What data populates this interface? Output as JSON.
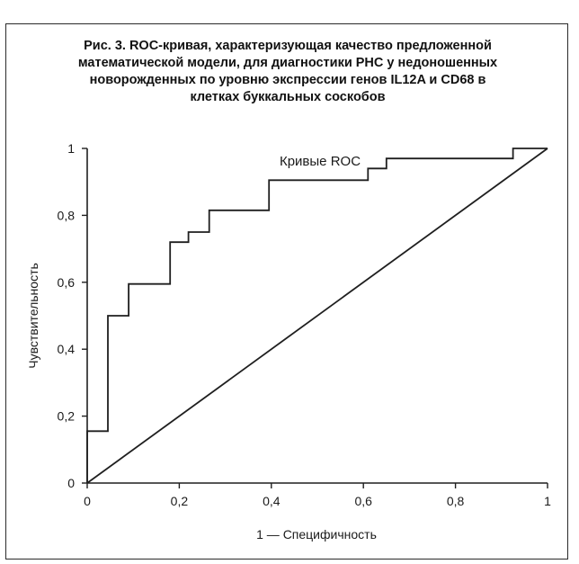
{
  "figure": {
    "caption_lines": [
      "Рис. 3. ROC-кривая, характеризующая качество предложенной",
      "математической модели, для диагностики РНС у недоношенных",
      "новорожденных по уровню экспрессии генов IL12A и CD68 в",
      "клетках буккальных соскобов"
    ]
  },
  "chart_data": {
    "type": "line",
    "title": "Кривые ROC",
    "xlabel": "1 — Специфичность",
    "ylabel": "Чувствительность",
    "xlim": [
      0,
      1
    ],
    "ylim": [
      0,
      1
    ],
    "x_ticks": [
      0,
      0.2,
      0.4,
      0.6,
      0.8,
      1
    ],
    "x_tick_labels": [
      "0",
      "0,2",
      "0,4",
      "0,6",
      "0,8",
      "1"
    ],
    "y_ticks": [
      0,
      0.2,
      0.4,
      0.6,
      0.8,
      1
    ],
    "y_tick_labels": [
      "0",
      "0,2",
      "0,4",
      "0,6",
      "0,8",
      "1"
    ],
    "grid": false,
    "legend": "none",
    "series": [
      {
        "role": "roc-curve",
        "step": true,
        "x": [
          0,
          0,
          0.045,
          0.045,
          0.09,
          0.09,
          0.18,
          0.18,
          0.22,
          0.22,
          0.265,
          0.265,
          0.395,
          0.395,
          0.61,
          0.61,
          0.65,
          0.65,
          0.925,
          0.925,
          1
        ],
        "y": [
          0,
          0.155,
          0.155,
          0.5,
          0.5,
          0.595,
          0.595,
          0.72,
          0.72,
          0.75,
          0.75,
          0.815,
          0.815,
          0.905,
          0.905,
          0.94,
          0.94,
          0.97,
          0.97,
          1,
          1
        ]
      },
      {
        "role": "reference-diagonal",
        "step": false,
        "x": [
          0,
          1
        ],
        "y": [
          0,
          1
        ]
      }
    ],
    "colors": {
      "lines": "#1f1f1f",
      "text": "#1a1a1a"
    }
  }
}
